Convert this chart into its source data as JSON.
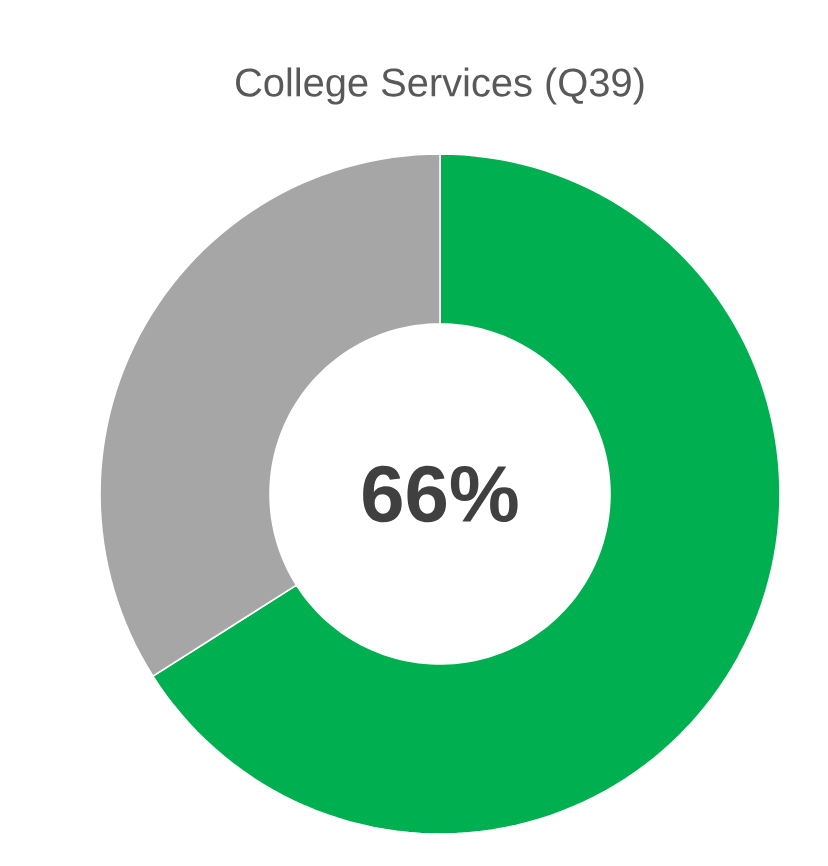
{
  "chart_data": {
    "type": "donut",
    "title": "College Services (Q39)",
    "categories": [
      null,
      null
    ],
    "values": [
      66,
      34
    ],
    "colors": [
      "#00b050",
      "#a6a6a6"
    ],
    "value_labels": [
      "66%",
      null
    ]
  }
}
